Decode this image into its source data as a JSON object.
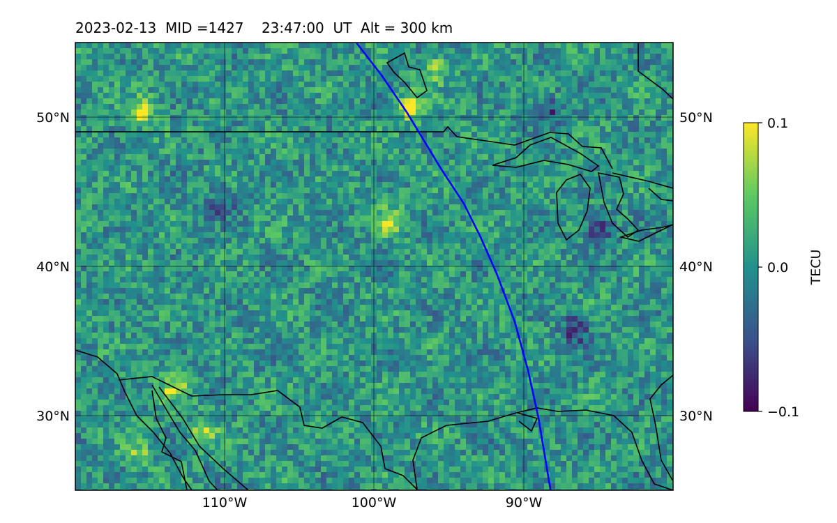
{
  "title": "2023-02-13  MID =1427    23:47:00  UT  Alt = 300 km",
  "chart_data": {
    "type": "heatmap",
    "title": "2023-02-13  MID =1427    23:47:00  UT  Alt = 300 km",
    "projection": "map of North America, lat/lon grid",
    "xlim": [
      -120,
      -80
    ],
    "ylim": [
      25,
      55
    ],
    "x_ticks": [
      -110,
      -100,
      -90
    ],
    "x_tick_labels": [
      "110°W",
      "100°W",
      "90°W"
    ],
    "y_ticks": [
      30,
      40,
      50
    ],
    "y_tick_labels_left": [
      "30°N",
      "40°N",
      "50°N"
    ],
    "y_tick_labels_right": [
      "30°N",
      "40°N",
      "50°N"
    ],
    "grid": true,
    "colorbar": {
      "label": "TECU",
      "colormap": "viridis",
      "range": [
        -0.1,
        0.1
      ],
      "ticks": [
        0.1,
        0.0,
        -0.1
      ],
      "tick_labels": [
        "0.1",
        "0.0",
        "−0.1"
      ]
    },
    "hotspots": [
      {
        "lon": -115.5,
        "lat": 50.4,
        "value": 0.09
      },
      {
        "lon": -97.5,
        "lat": 50.7,
        "value": 0.1
      },
      {
        "lon": -98.8,
        "lat": 43.1,
        "value": 0.08
      },
      {
        "lon": -113.5,
        "lat": 32.0,
        "value": 0.07
      },
      {
        "lon": -111.5,
        "lat": 29.0,
        "value": 0.06
      },
      {
        "lon": -115.8,
        "lat": 27.5,
        "value": 0.05
      },
      {
        "lon": -95.8,
        "lat": 53.3,
        "value": 0.06
      }
    ],
    "coldspots": [
      {
        "lon": -88.4,
        "lat": 50.5,
        "value": -0.07
      },
      {
        "lon": -86.5,
        "lat": 35.8,
        "value": -0.08
      },
      {
        "lon": -85.0,
        "lat": 42.5,
        "value": -0.07
      },
      {
        "lon": -110.2,
        "lat": 44.3,
        "value": -0.06
      }
    ],
    "track": {
      "color": "#0000ff",
      "points": [
        [
          -101.2,
          55.0
        ],
        [
          -99.5,
          52.8
        ],
        [
          -97.8,
          50.3
        ],
        [
          -95.5,
          46.5
        ],
        [
          -94.0,
          44.2
        ],
        [
          -92.9,
          42.0
        ],
        [
          -91.8,
          39.5
        ],
        [
          -90.6,
          36.3
        ],
        [
          -89.7,
          33.0
        ],
        [
          -89.0,
          29.8
        ],
        [
          -88.2,
          25.0
        ]
      ]
    }
  }
}
